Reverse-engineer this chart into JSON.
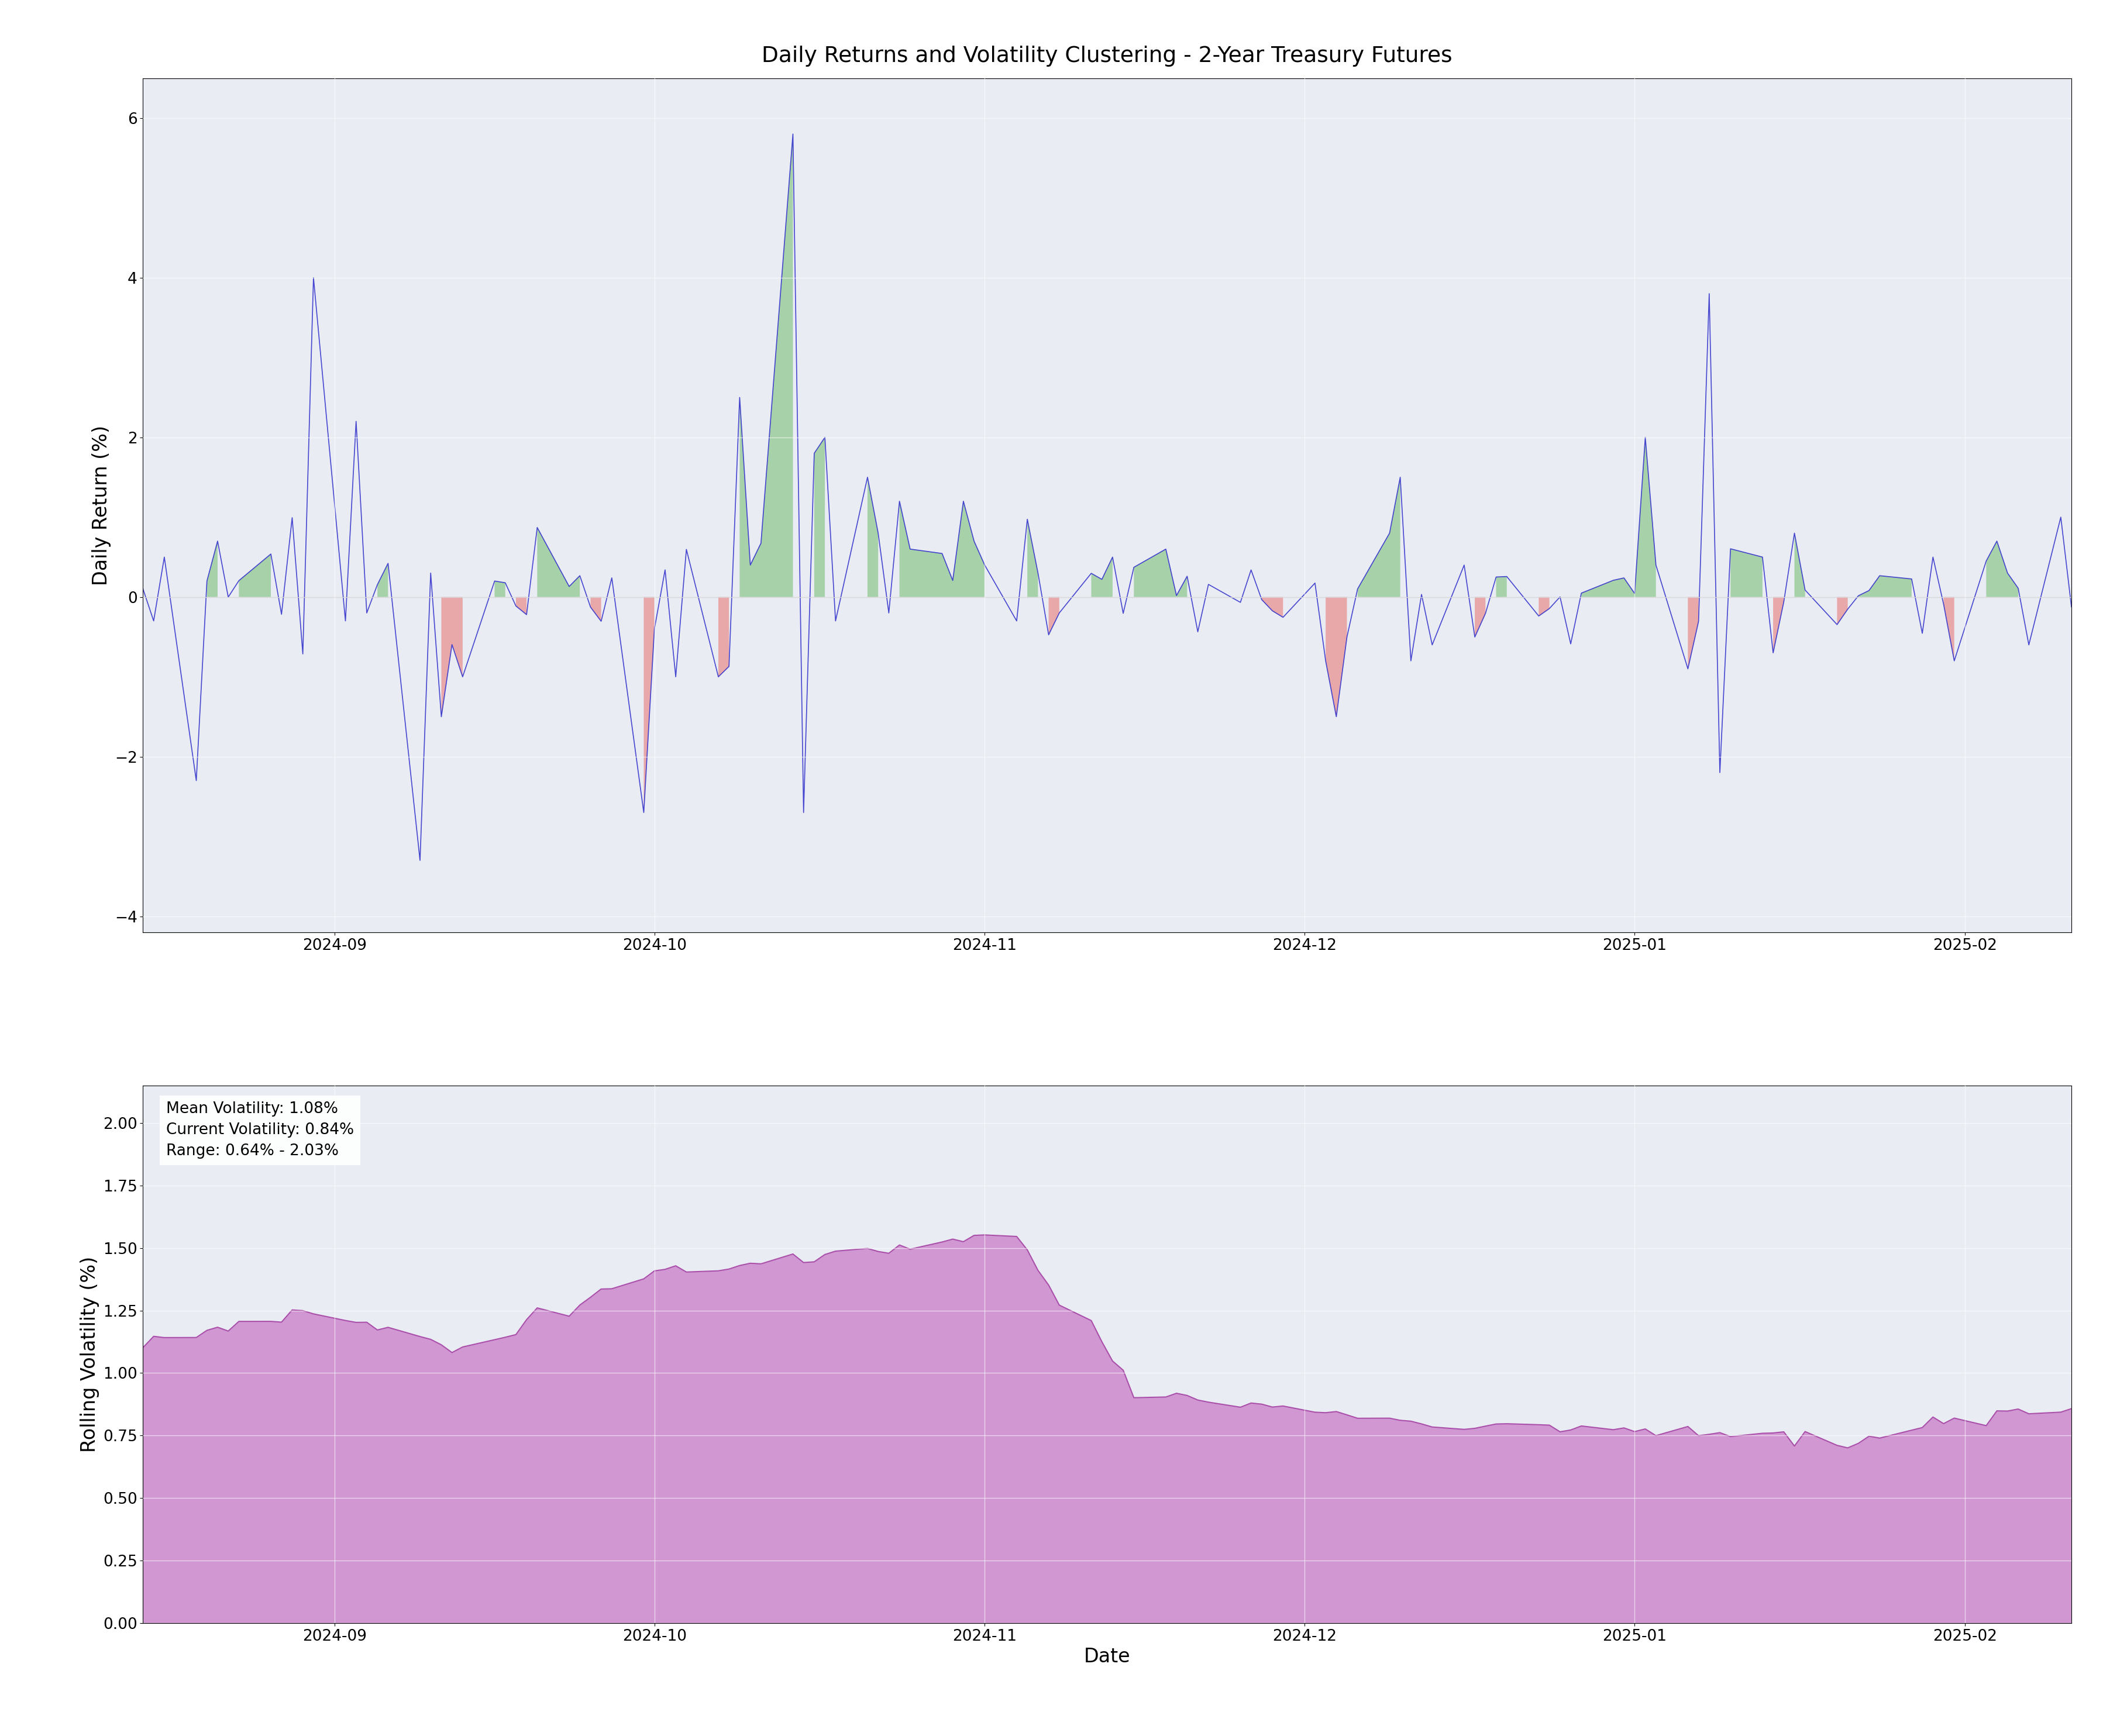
{
  "title": "Daily Returns and Volatility Clustering - 2-Year Treasury Futures",
  "ylabel_top": "Daily Return (%)",
  "ylabel_bottom": "Rolling Volatility (%)",
  "xlabel": "Date",
  "plot_bg_color": "#eaecf4",
  "line_color": "#3535cc",
  "fill_positive_color": "#90c890",
  "fill_negative_color": "#e89090",
  "vol_line_color": "#aa50aa",
  "vol_fill_color": "#cc88cc",
  "mean_volatility": 1.08,
  "current_volatility": 0.84,
  "range_min": 0.64,
  "range_max": 2.03,
  "annotation_text": "Mean Volatility: 1.08%\nCurrent Volatility: 0.84%\nRange: 0.64% - 2.03%",
  "start_date": "2024-08-14",
  "n_days": 130
}
